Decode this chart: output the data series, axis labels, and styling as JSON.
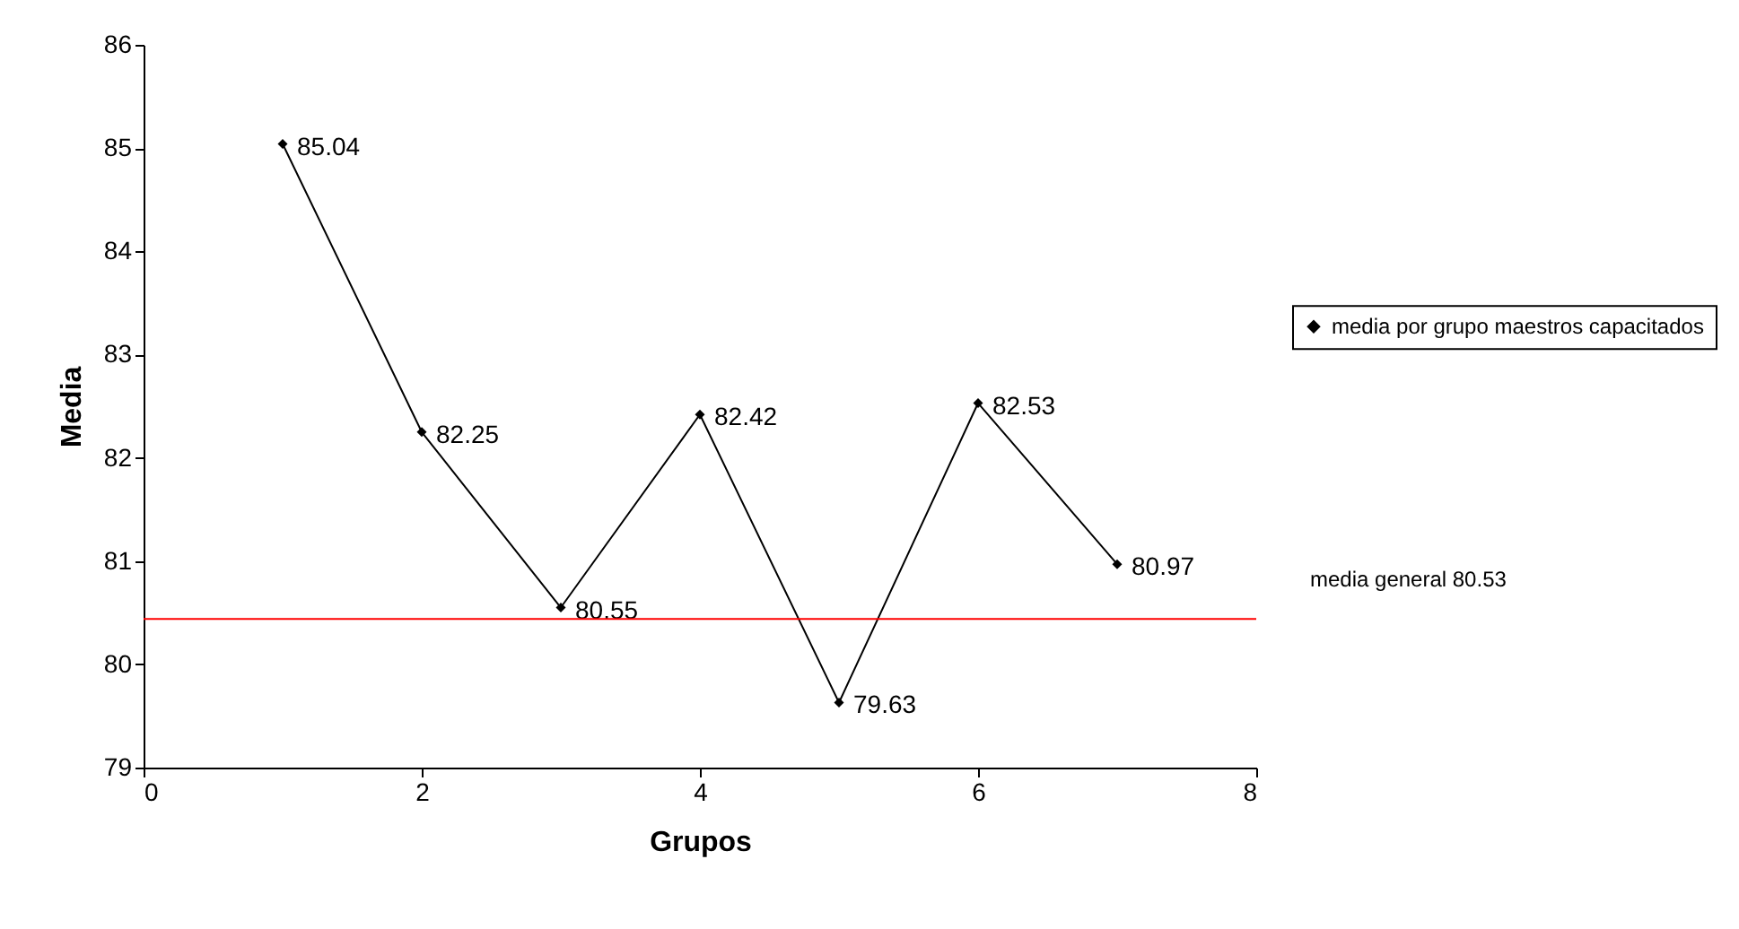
{
  "chart_data": {
    "type": "line",
    "xlabel": "Grupos",
    "ylabel": "Media",
    "x": [
      1,
      2,
      3,
      4,
      5,
      6,
      7
    ],
    "series": [
      {
        "name": "media por grupo maestros capacitados",
        "color": "#000000",
        "values": [
          85.04,
          82.25,
          80.55,
          82.42,
          79.63,
          82.53,
          80.97
        ],
        "value_labels": [
          "85.04",
          "82.25",
          "80.55",
          "82.42",
          "79.63",
          "82.53",
          "80.97"
        ]
      }
    ],
    "xlim": [
      0,
      8
    ],
    "xticks": [
      0,
      2,
      4,
      6,
      8
    ],
    "ylim": [
      79,
      86
    ],
    "yticks": [
      79,
      80,
      81,
      82,
      83,
      84,
      85,
      86
    ],
    "ref_lines": [
      {
        "axis": "y",
        "value": 80.44,
        "label": "media general 80.53",
        "color": "#ff0000"
      }
    ],
    "marker": "diamond",
    "line_style": "solid",
    "legend": "right",
    "grid": false
  }
}
